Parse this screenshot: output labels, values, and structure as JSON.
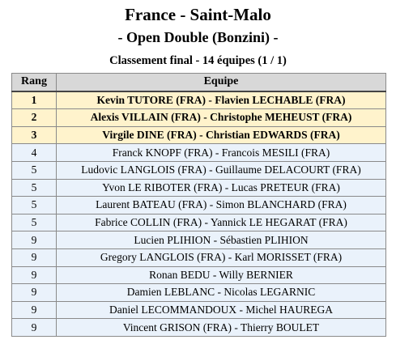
{
  "header": {
    "title": "France - Saint-Malo",
    "subtitle": "- Open Double (Bonzini) -",
    "caption": "Classement final - 14 équipes (1 / 1)"
  },
  "table": {
    "columns": [
      "Rang",
      "Equipe"
    ],
    "rows": [
      {
        "rank": "1",
        "team": "Kevin TUTORE (FRA) - Flavien LECHABLE (FRA)"
      },
      {
        "rank": "2",
        "team": "Alexis VILLAIN (FRA) - Christophe MEHEUST (FRA)"
      },
      {
        "rank": "3",
        "team": "Virgile DINE (FRA) - Christian EDWARDS (FRA)"
      },
      {
        "rank": "4",
        "team": "Franck KNOPF (FRA) - Francois MESILI (FRA)"
      },
      {
        "rank": "5",
        "team": "Ludovic LANGLOIS (FRA) - Guillaume DELACOURT (FRA)"
      },
      {
        "rank": "5",
        "team": "Yvon LE RIBOTER (FRA) - Lucas PRETEUR (FRA)"
      },
      {
        "rank": "5",
        "team": "Laurent BATEAU (FRA) - Simon BLANCHARD (FRA)"
      },
      {
        "rank": "5",
        "team": "Fabrice COLLIN (FRA) - Yannick LE HEGARAT (FRA)"
      },
      {
        "rank": "9",
        "team": "Lucien PLIHION - Sébastien PLIHION"
      },
      {
        "rank": "9",
        "team": "Gregory LANGLOIS (FRA) - Karl MORISSET (FRA)"
      },
      {
        "rank": "9",
        "team": "Ronan BEDU - Willy BERNIER"
      },
      {
        "rank": "9",
        "team": "Damien LEBLANC - Nicolas LEGARNIC"
      },
      {
        "rank": "9",
        "team": "Daniel LECOMMANDOUX - Michel HAUREGA"
      },
      {
        "rank": "9",
        "team": "Vincent GRISON (FRA) - Thierry BOULET"
      }
    ]
  },
  "colors": {
    "podium_row": "#fff3cc",
    "regular_row": "#eaf2fb",
    "header_row": "#d8d8d8"
  }
}
